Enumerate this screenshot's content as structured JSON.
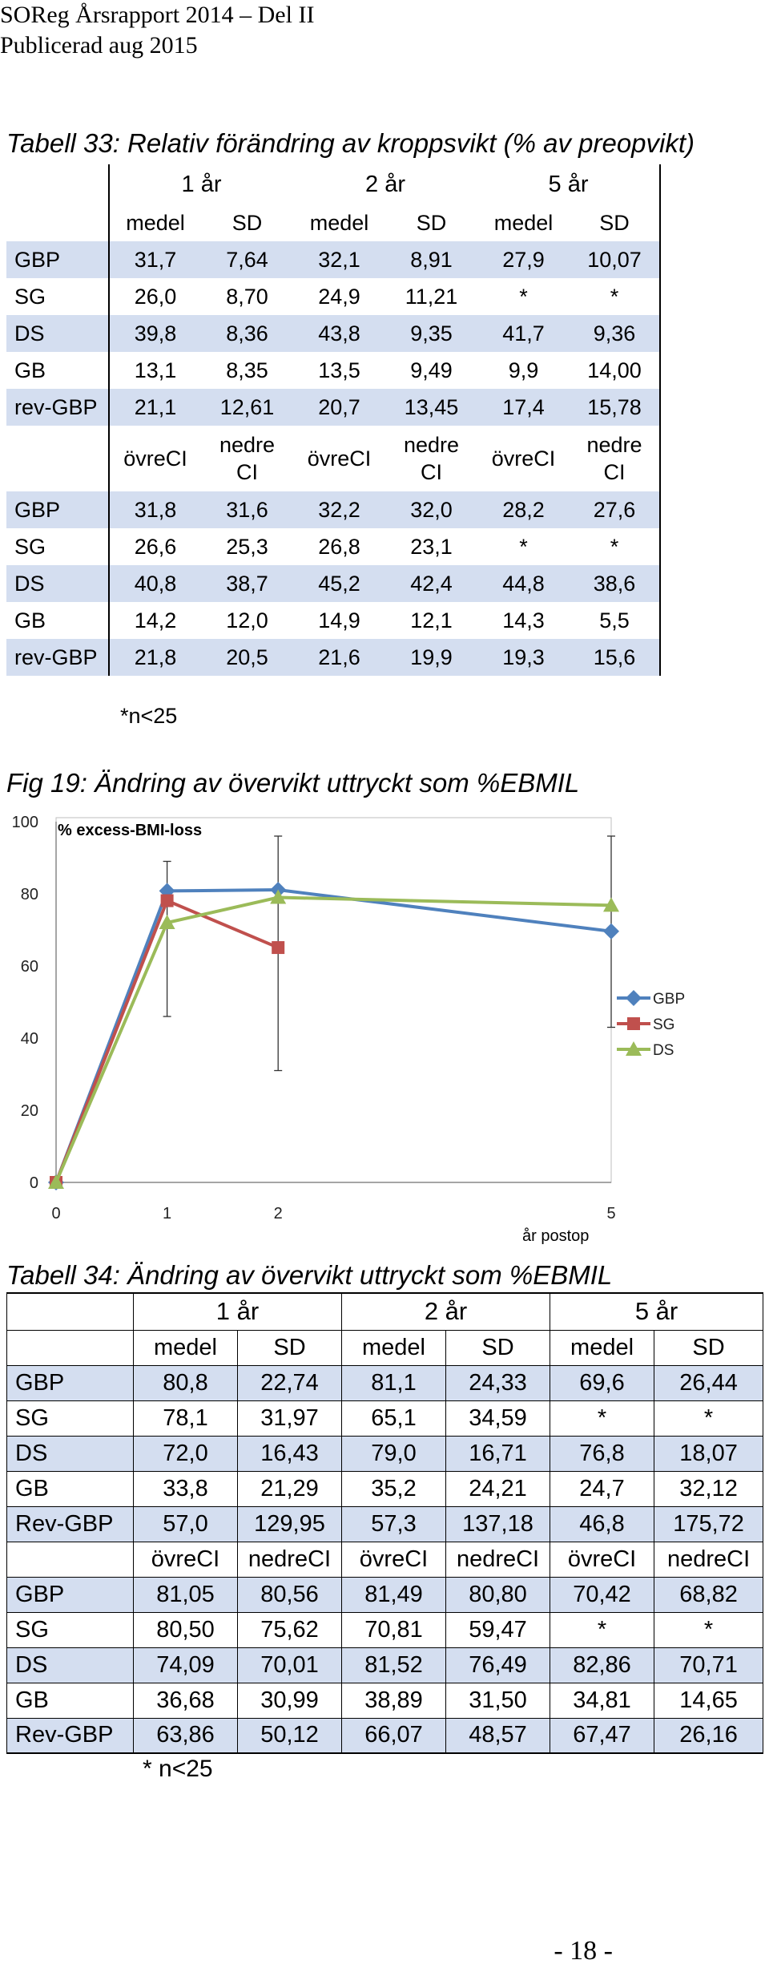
{
  "header": {
    "line1": "SOReg Årsrapport 2014 – Del II",
    "line2": "Publicerad aug 2015"
  },
  "table33": {
    "caption": "Tabell 33: Relativ förändring av kroppsvikt (% av preopvikt)",
    "years": [
      "1 år",
      "2 år",
      "5 år"
    ],
    "sub1": [
      "medel",
      "SD",
      "medel",
      "SD",
      "medel",
      "SD"
    ],
    "rows1": [
      {
        "label": "GBP",
        "v": [
          "31,7",
          "7,64",
          "32,1",
          "8,91",
          "27,9",
          "10,07"
        ]
      },
      {
        "label": "SG",
        "v": [
          "26,0",
          "8,70",
          "24,9",
          "11,21",
          "*",
          "*"
        ]
      },
      {
        "label": "DS",
        "v": [
          "39,8",
          "8,36",
          "43,8",
          "9,35",
          "41,7",
          "9,36"
        ]
      },
      {
        "label": "GB",
        "v": [
          "13,1",
          "8,35",
          "13,5",
          "9,49",
          "9,9",
          "14,00"
        ]
      },
      {
        "label": "rev-GBP",
        "v": [
          "21,1",
          "12,61",
          "20,7",
          "13,45",
          "17,4",
          "15,78"
        ]
      }
    ],
    "ci_upper": "övreCI",
    "ci_lower_1": "nedre",
    "ci_lower_2": "CI",
    "rows2": [
      {
        "label": "GBP",
        "v": [
          "31,8",
          "31,6",
          "32,2",
          "32,0",
          "28,2",
          "27,6"
        ]
      },
      {
        "label": "SG",
        "v": [
          "26,6",
          "25,3",
          "26,8",
          "23,1",
          "*",
          "*"
        ]
      },
      {
        "label": "DS",
        "v": [
          "40,8",
          "38,7",
          "45,2",
          "42,4",
          "44,8",
          "38,6"
        ]
      },
      {
        "label": "GB",
        "v": [
          "14,2",
          "12,0",
          "14,9",
          "12,1",
          "14,3",
          "5,5"
        ]
      },
      {
        "label": "rev-GBP",
        "v": [
          "21,8",
          "20,5",
          "21,6",
          "19,9",
          "19,3",
          "15,6"
        ]
      }
    ],
    "note": "*n<25"
  },
  "figure": {
    "caption": "Fig 19: Ändring av övervikt uttryckt som %EBMIL"
  },
  "chart_data": {
    "type": "line",
    "title": "% excess-BMI-loss",
    "xlabel": "år postop",
    "ylabel": "",
    "x": [
      0,
      1,
      2,
      5
    ],
    "xticks": [
      "0",
      "1",
      "2",
      "5"
    ],
    "yticks": [
      "0",
      "20",
      "40",
      "60",
      "80",
      "100"
    ],
    "xlim": [
      0,
      5
    ],
    "ylim": [
      0,
      100
    ],
    "series": [
      {
        "name": "GBP",
        "color": "#4f81bd",
        "marker": "diamond",
        "x": [
          0,
          1,
          2,
          5
        ],
        "values": [
          0,
          80.8,
          81.1,
          69.6
        ]
      },
      {
        "name": "SG",
        "color": "#c0504d",
        "marker": "square",
        "x": [
          0,
          1,
          2
        ],
        "values": [
          0,
          78.1,
          65.1
        ]
      },
      {
        "name": "DS",
        "color": "#9bbb59",
        "marker": "triangle",
        "x": [
          0,
          1,
          2,
          5
        ],
        "values": [
          0,
          72.0,
          79.0,
          76.8
        ]
      }
    ],
    "error_bars": [
      {
        "x": 1,
        "low": 46,
        "high": 89
      },
      {
        "x": 2,
        "low": 31,
        "high": 96
      },
      {
        "x": 5,
        "low": 43,
        "high": 96
      }
    ]
  },
  "table34": {
    "caption": "Tabell 34: Ändring av övervikt uttryckt som %EBMIL",
    "years": [
      "1 år",
      "2 år",
      "5 år"
    ],
    "sub1": [
      "medel",
      "SD",
      "medel",
      "SD",
      "medel",
      "SD"
    ],
    "rows1": [
      {
        "label": "GBP",
        "v": [
          "80,8",
          "22,74",
          "81,1",
          "24,33",
          "69,6",
          "26,44"
        ]
      },
      {
        "label": "SG",
        "v": [
          "78,1",
          "31,97",
          "65,1",
          "34,59",
          "*",
          "*"
        ]
      },
      {
        "label": "DS",
        "v": [
          "72,0",
          "16,43",
          "79,0",
          "16,71",
          "76,8",
          "18,07"
        ]
      },
      {
        "label": "GB",
        "v": [
          "33,8",
          "21,29",
          "35,2",
          "24,21",
          "24,7",
          "32,12"
        ]
      },
      {
        "label": "Rev-GBP",
        "v": [
          "57,0",
          "129,95",
          "57,3",
          "137,18",
          "46,8",
          "175,72"
        ]
      }
    ],
    "sub2": [
      "övreCI",
      "nedreCI",
      "övreCI",
      "nedreCI",
      "övreCI",
      "nedreCI"
    ],
    "rows2": [
      {
        "label": "GBP",
        "v": [
          "81,05",
          "80,56",
          "81,49",
          "80,80",
          "70,42",
          "68,82"
        ]
      },
      {
        "label": "SG",
        "v": [
          "80,50",
          "75,62",
          "70,81",
          "59,47",
          "*",
          "*"
        ]
      },
      {
        "label": "DS",
        "v": [
          "74,09",
          "70,01",
          "81,52",
          "76,49",
          "82,86",
          "70,71"
        ]
      },
      {
        "label": "GB",
        "v": [
          "36,68",
          "30,99",
          "38,89",
          "31,50",
          "34,81",
          "14,65"
        ]
      },
      {
        "label": "Rev-GBP",
        "v": [
          "63,86",
          "50,12",
          "66,07",
          "48,57",
          "67,47",
          "26,16"
        ]
      }
    ],
    "note": "* n<25"
  },
  "footer": {
    "page": "- 18 -"
  }
}
